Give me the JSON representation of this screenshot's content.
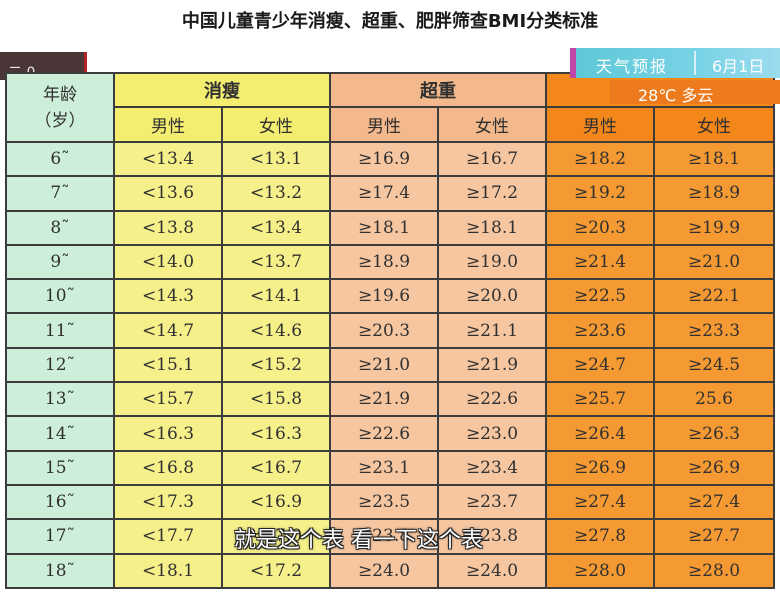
{
  "title": "中国儿童青少年消瘦、超重、肥胖筛查BMI分类标准",
  "corner_mark": "二 0",
  "weather": {
    "label": "天气预报",
    "date": "6月1日",
    "temp": "28℃ 多云"
  },
  "subtitle": "就是这个表 看一下这个表",
  "table": {
    "age_header": "年龄\n（岁）",
    "groups": [
      "消瘦",
      "超重",
      ""
    ],
    "sex_labels": [
      "男性",
      "女性",
      "男性",
      "女性",
      "男性",
      "女性"
    ],
    "rows": [
      {
        "age": "6˜",
        "values": [
          "<13.4",
          "<13.1",
          "≥16.9",
          "≥16.7",
          "≥18.2",
          "≥18.1"
        ]
      },
      {
        "age": "7˜",
        "values": [
          "<13.6",
          "<13.2",
          "≥17.4",
          "≥17.2",
          "≥19.2",
          "≥18.9"
        ]
      },
      {
        "age": "8˜",
        "values": [
          "<13.8",
          "<13.4",
          "≥18.1",
          "≥18.1",
          "≥20.3",
          "≥19.9"
        ]
      },
      {
        "age": "9˜",
        "values": [
          "<14.0",
          "<13.7",
          "≥18.9",
          "≥19.0",
          "≥21.4",
          "≥21.0"
        ]
      },
      {
        "age": "10˜",
        "values": [
          "<14.3",
          "<14.1",
          "≥19.6",
          "≥20.0",
          "≥22.5",
          "≥22.1"
        ]
      },
      {
        "age": "11˜",
        "values": [
          "<14.7",
          "<14.6",
          "≥20.3",
          "≥21.1",
          "≥23.6",
          "≥23.3"
        ]
      },
      {
        "age": "12˜",
        "values": [
          "<15.1",
          "<15.2",
          "≥21.0",
          "≥21.9",
          "≥24.7",
          "≥24.5"
        ]
      },
      {
        "age": "13˜",
        "values": [
          "<15.7",
          "<15.8",
          "≥21.9",
          "≥22.6",
          "≥25.7",
          "25.6"
        ]
      },
      {
        "age": "14˜",
        "values": [
          "<16.3",
          "<16.3",
          "≥22.6",
          "≥23.0",
          "≥26.4",
          "≥26.3"
        ]
      },
      {
        "age": "15˜",
        "values": [
          "<16.8",
          "<16.7",
          "≥23.1",
          "≥23.4",
          "≥26.9",
          "≥26.9"
        ]
      },
      {
        "age": "16˜",
        "values": [
          "<17.3",
          "<16.9",
          "≥23.5",
          "≥23.7",
          "≥27.4",
          "≥27.4"
        ]
      },
      {
        "age": "17˜",
        "values": [
          "<17.7",
          "<17.0",
          "≥23.8",
          "≥23.8",
          "≥27.8",
          "≥27.7"
        ]
      },
      {
        "age": "18˜",
        "values": [
          "<18.1",
          "<17.2",
          "≥24.0",
          "≥24.0",
          "≥28.0",
          "≥28.0"
        ]
      }
    ]
  }
}
